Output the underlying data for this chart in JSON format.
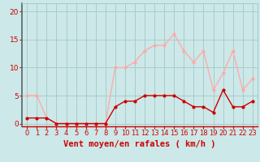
{
  "x": [
    0,
    1,
    2,
    3,
    4,
    5,
    6,
    7,
    8,
    9,
    10,
    11,
    12,
    13,
    14,
    15,
    16,
    17,
    18,
    19,
    20,
    21,
    22,
    23
  ],
  "mean_wind": [
    1,
    1,
    1,
    0,
    0,
    0,
    0,
    0,
    0,
    3,
    4,
    4,
    5,
    5,
    5,
    5,
    4,
    3,
    3,
    2,
    6,
    3,
    3,
    4
  ],
  "gusts": [
    5,
    5,
    1,
    0,
    0,
    0,
    0,
    0,
    0,
    10,
    10,
    11,
    13,
    14,
    14,
    16,
    13,
    11,
    13,
    6,
    9,
    13,
    6,
    8
  ],
  "mean_color": "#cc0000",
  "gust_color": "#ffaaaa",
  "bg_color": "#cce8e8",
  "grid_color": "#aacccc",
  "xlabel": "Vent moyen/en rafales ( km/h )",
  "xlabel_color": "#cc0000",
  "ylabel_color": "#cc0000",
  "yticks": [
    0,
    5,
    10,
    15,
    20
  ],
  "ylim": [
    -0.5,
    21.5
  ],
  "xlim": [
    -0.5,
    23.5
  ],
  "tick_fontsize": 6.5,
  "xlabel_fontsize": 7.5
}
